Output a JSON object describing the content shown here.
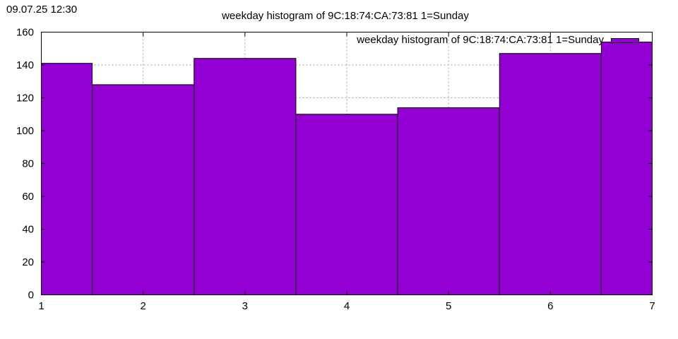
{
  "timestamp": "09.07.25 12:30",
  "chart_data": {
    "type": "bar",
    "title": "weekday histogram of 9C:18:74:CA:73:81 1=Sunday",
    "xlabel": "",
    "ylabel": "",
    "x": [
      1,
      2,
      3,
      4,
      5,
      6,
      7
    ],
    "values": [
      141,
      128,
      144,
      110,
      114,
      147,
      154
    ],
    "xlim": [
      1,
      7
    ],
    "ylim": [
      0,
      160
    ],
    "xticks": [
      1,
      2,
      3,
      4,
      5,
      6,
      7
    ],
    "yticks": [
      0,
      20,
      40,
      60,
      80,
      100,
      120,
      140,
      160
    ],
    "grid": true,
    "legend": {
      "placement": "top-right",
      "entries": [
        "weekday histogram of 9C:18:74:CA:73:81 1=Sunday"
      ]
    },
    "colors": {
      "bar": "#9400d3",
      "grid": "#a0a0a0"
    }
  }
}
